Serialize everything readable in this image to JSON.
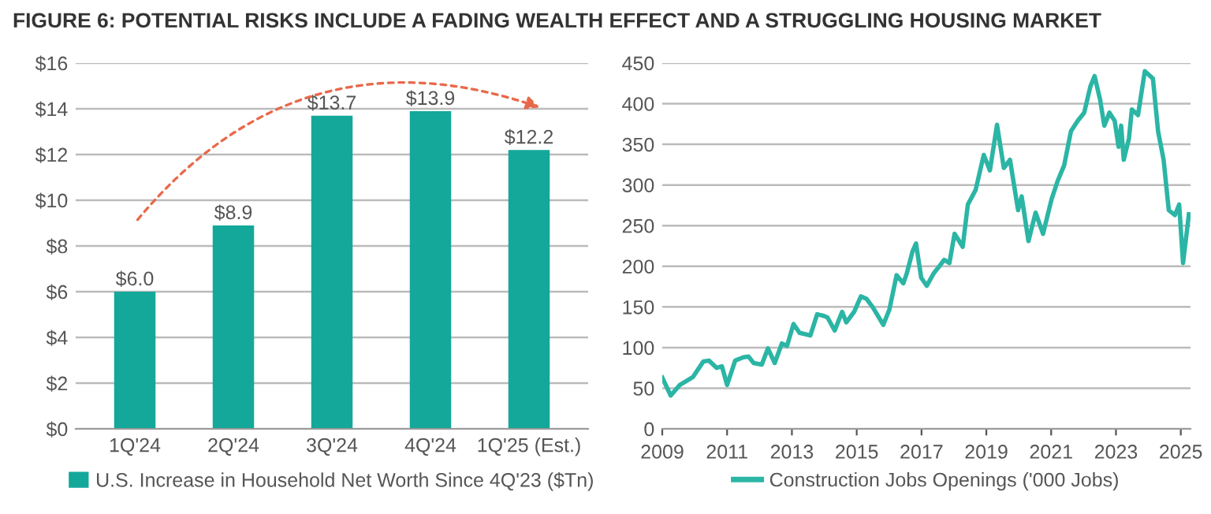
{
  "chart_data": [
    {
      "type": "bar",
      "title": "FIGURE 6: POTENTIAL RISKS INCLUDE A FADING WEALTH EFFECT AND A STRUGGLING HOUSING MARKET",
      "categories": [
        "1Q'24",
        "2Q'24",
        "3Q'24",
        "4Q'24",
        "1Q'25 (Est.)"
      ],
      "series": [
        {
          "name": "U.S. Increase in Household Net Worth Since 4Q'23 ($Tn)",
          "color": "#14a89a",
          "values": [
            6.0,
            8.9,
            13.7,
            13.9,
            12.2
          ]
        }
      ],
      "value_labels": [
        "$6.0",
        "$8.9",
        "$13.7",
        "$13.9",
        "$12.2"
      ],
      "ylim": [
        0,
        16
      ],
      "yticks": [
        {
          "value": 0,
          "label": "$0"
        },
        {
          "value": 2,
          "label": "$2"
        },
        {
          "value": 4,
          "label": "$4"
        },
        {
          "value": 6,
          "label": "$6"
        },
        {
          "value": 8,
          "label": "$8"
        },
        {
          "value": 10,
          "label": "$10"
        },
        {
          "value": 12,
          "label": "$12"
        },
        {
          "value": 14,
          "label": "$14"
        },
        {
          "value": 16,
          "label": "$16"
        }
      ],
      "grid": "y",
      "legend": "bottom"
    },
    {
      "type": "line",
      "x": [
        2009.0,
        2009.26,
        2009.54,
        2009.95,
        2010.27,
        2010.44,
        2010.68,
        2010.84,
        2011.0,
        2011.25,
        2011.5,
        2011.66,
        2011.82,
        2012.07,
        2012.26,
        2012.47,
        2012.69,
        2012.85,
        2013.05,
        2013.24,
        2013.57,
        2013.78,
        2013.99,
        2014.1,
        2014.32,
        2014.55,
        2014.68,
        2014.92,
        2015.13,
        2015.3,
        2015.49,
        2015.82,
        2016.01,
        2016.23,
        2016.44,
        2016.55,
        2016.72,
        2016.83,
        2016.99,
        2017.16,
        2017.37,
        2017.53,
        2017.7,
        2017.86,
        2018.02,
        2018.27,
        2018.43,
        2018.67,
        2018.92,
        2019.11,
        2019.33,
        2019.54,
        2019.73,
        2019.98,
        2020.09,
        2020.3,
        2020.52,
        2020.75,
        2021.01,
        2021.2,
        2021.4,
        2021.61,
        2021.82,
        2022.02,
        2022.21,
        2022.34,
        2022.51,
        2022.64,
        2022.8,
        2022.96,
        2023.08,
        2023.16,
        2023.24,
        2023.4,
        2023.49,
        2023.68,
        2023.89,
        2024.14,
        2024.3,
        2024.47,
        2024.63,
        2024.82,
        2024.95,
        2025.07,
        2025.25
      ],
      "series": [
        {
          "name": "Construction Jobs Openings ('000 Jobs)",
          "color": "#2bb5a5",
          "values": [
            63,
            41,
            54,
            64,
            83,
            84,
            75,
            77,
            54,
            84,
            88,
            89,
            81,
            79,
            99,
            81,
            105,
            102,
            129,
            118,
            115,
            141,
            139,
            137,
            121,
            144,
            131,
            144,
            163,
            160,
            150,
            128,
            147,
            189,
            179,
            192,
            218,
            228,
            186,
            176,
            191,
            199,
            208,
            204,
            240,
            224,
            276,
            294,
            337,
            318,
            374,
            321,
            331,
            269,
            286,
            231,
            266,
            240,
            282,
            305,
            324,
            366,
            379,
            389,
            421,
            434,
            405,
            373,
            389,
            379,
            347,
            373,
            331,
            357,
            393,
            386,
            440,
            431,
            366,
            331,
            269,
            263,
            276,
            204,
            264
          ]
        }
      ],
      "xlim": [
        2009,
        2025.3
      ],
      "xticks": [
        2009,
        2011,
        2013,
        2015,
        2017,
        2019,
        2021,
        2023,
        2025
      ],
      "ylim": [
        0,
        450
      ],
      "yticks": [
        0,
        50,
        100,
        150,
        200,
        250,
        300,
        350,
        400,
        450
      ],
      "grid": "y",
      "legend": "bottom",
      "marker": "none",
      "line_style": "solid"
    }
  ]
}
